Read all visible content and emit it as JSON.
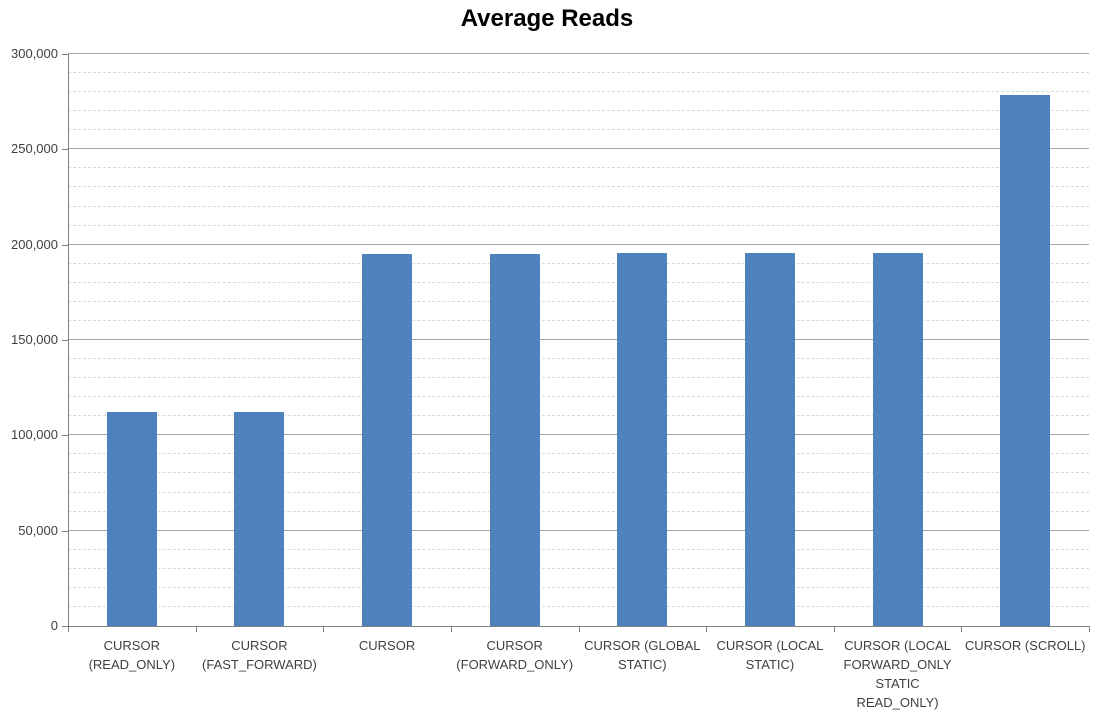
{
  "chart_data": {
    "type": "bar",
    "title": "Average Reads",
    "xlabel": "",
    "ylabel": "",
    "legend": "none",
    "categories": [
      "CURSOR\n(READ_ONLY)",
      "CURSOR\n(FAST_FORWARD)",
      "CURSOR",
      "CURSOR\n(FORWARD_ONLY)",
      "CURSOR (GLOBAL\nSTATIC)",
      "CURSOR (LOCAL\nSTATIC)",
      "CURSOR (LOCAL\nFORWARD_ONLY\nSTATIC\nREAD_ONLY)",
      "CURSOR (SCROLL)"
    ],
    "values": [
      112000,
      112000,
      195000,
      195000,
      195500,
      195500,
      195500,
      278500
    ],
    "ylim": [
      0,
      300000
    ],
    "y_major_step": 50000,
    "y_minor_step": 10000,
    "y_tick_labels": [
      "0",
      "50,000",
      "100,000",
      "150,000",
      "200,000",
      "250,000",
      "300,000"
    ],
    "gridlines": {
      "major": "solid",
      "minor": "dashed"
    }
  },
  "colors": {
    "bar": "#4F81BD",
    "axis_line": "#808080",
    "major_grid": "#A6A6A6",
    "minor_grid": "#D9D9D9",
    "tick_text": "#3F3F3F",
    "title_text": "#000000",
    "background": "#FFFFFF"
  }
}
